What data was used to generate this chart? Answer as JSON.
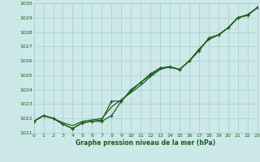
{
  "xlabel": "Graphe pression niveau de la mer (hPa)",
  "x": [
    0,
    1,
    2,
    3,
    4,
    5,
    6,
    7,
    8,
    9,
    10,
    11,
    12,
    13,
    14,
    15,
    16,
    17,
    18,
    19,
    20,
    21,
    22,
    23
  ],
  "line1": [
    1021.8,
    1022.2,
    1022.0,
    1021.7,
    1021.5,
    1021.8,
    1021.9,
    1022.0,
    1022.8,
    1023.3,
    1023.8,
    1024.3,
    1024.9,
    1025.4,
    1025.6,
    1025.4,
    1026.0,
    1026.8,
    1027.5,
    1027.8,
    1028.3,
    1029.0,
    1029.2,
    1029.7
  ],
  "line2": [
    1021.8,
    1022.2,
    1022.0,
    1021.6,
    1021.3,
    1021.7,
    1021.8,
    1021.9,
    1023.2,
    1023.2,
    1023.9,
    1024.5,
    1025.1,
    1025.5,
    1025.55,
    1025.4,
    1026.0,
    1026.8,
    1027.5,
    1027.8,
    1028.3,
    1029.0,
    1029.2,
    1029.7
  ],
  "line3": [
    1021.8,
    1022.2,
    1022.0,
    1021.6,
    1021.3,
    1021.7,
    1021.8,
    1021.8,
    1022.2,
    1023.2,
    1024.0,
    1024.5,
    1025.0,
    1025.5,
    1025.6,
    1025.4,
    1026.0,
    1026.7,
    1027.6,
    1027.8,
    1028.3,
    1029.0,
    1029.15,
    1029.7
  ],
  "line_color": "#1a5e1a",
  "bg_color": "#cce8e8",
  "grid_color": "#aacccc",
  "ylim": [
    1021.0,
    1030.0
  ],
  "yticks": [
    1021,
    1022,
    1023,
    1024,
    1025,
    1026,
    1027,
    1028,
    1029,
    1030
  ],
  "xlim": [
    0,
    23
  ],
  "xticks": [
    0,
    1,
    2,
    3,
    4,
    5,
    6,
    7,
    8,
    9,
    10,
    11,
    12,
    13,
    14,
    15,
    16,
    17,
    18,
    19,
    20,
    21,
    22,
    23
  ]
}
